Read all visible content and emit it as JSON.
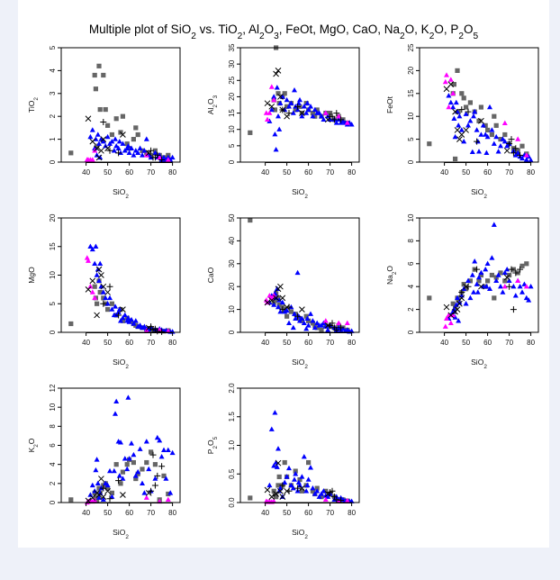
{
  "chart_data": {
    "type": "scatter",
    "title": "Multiple plot of SiO2 vs. TiO2, Al2O3, FeOt, MgO, CaO, Na2O, K2O, P2O5",
    "xlabel": "SiO2",
    "xlim": [
      28.5,
      83.5
    ],
    "xticks": [
      40,
      50,
      60,
      70,
      80
    ],
    "grid": false,
    "legend": "none",
    "variables": [
      "SiO2",
      "TiO2",
      "Al2O3",
      "FeOt",
      "MgO",
      "CaO",
      "Na2O",
      "K2O",
      "P2O5"
    ],
    "panels": [
      {
        "ylabel": "TiO2",
        "ylim": [
          0,
          5
        ],
        "yticks": [
          "0",
          "1",
          "2",
          "3",
          "4",
          "5"
        ]
      },
      {
        "ylabel": "Al2O3",
        "ylim": [
          0,
          35
        ],
        "yticks": [
          "0",
          "5",
          "10",
          "15",
          "20",
          "25",
          "30",
          "35"
        ]
      },
      {
        "ylabel": "FeOt",
        "ylim": [
          0,
          25
        ],
        "yticks": [
          "0",
          "5",
          "10",
          "15",
          "20",
          "25"
        ]
      },
      {
        "ylabel": "MgO",
        "ylim": [
          0,
          20
        ],
        "yticks": [
          "0",
          "5",
          "10",
          "15",
          "20"
        ]
      },
      {
        "ylabel": "CaO",
        "ylim": [
          0,
          50
        ],
        "yticks": [
          "0",
          "10",
          "20",
          "30",
          "40",
          "50"
        ]
      },
      {
        "ylabel": "Na2O",
        "ylim": [
          0,
          10
        ],
        "yticks": [
          "0",
          "2",
          "4",
          "6",
          "8",
          "10"
        ]
      },
      {
        "ylabel": "K2O",
        "ylim": [
          0,
          12
        ],
        "yticks": [
          "0",
          "2",
          "4",
          "6",
          "8",
          "10",
          "12"
        ]
      },
      {
        "ylabel": "P2O5",
        "ylim": [
          0,
          2
        ],
        "yticks": [
          "0.0",
          "0.5",
          "1.0",
          "1.5",
          "2.0"
        ]
      }
    ],
    "series": [
      {
        "marker": "square",
        "color": "#666666",
        "samples": [
          [
            33,
            0.4,
            9,
            4,
            1.5,
            49,
            3,
            0.3,
            0.08
          ],
          [
            44,
            3.8,
            19,
            15,
            8,
            13,
            2.5,
            1.0,
            0.2
          ],
          [
            44.5,
            3.2,
            16,
            17,
            6,
            14,
            1.8,
            0.5,
            0.15
          ],
          [
            45,
            0.7,
            35,
            0.7,
            5,
            17,
            2.2,
            0.2,
            0.1
          ],
          [
            46,
            4.2,
            21,
            20,
            9,
            15,
            3,
            1.5,
            0.3
          ],
          [
            46.5,
            2.3,
            18,
            11,
            7,
            12,
            2.8,
            1.0,
            0.45
          ],
          [
            48,
            3.8,
            20,
            15,
            6,
            11,
            3.5,
            1.8,
            0.3
          ],
          [
            49,
            2.3,
            21,
            14,
            5,
            10,
            4.2,
            2.0,
            0.7
          ],
          [
            50,
            1.6,
            17,
            12,
            4,
            7,
            3.8,
            1.5,
            0.45
          ],
          [
            52,
            1.2,
            18,
            13,
            5,
            9,
            4.5,
            1.0,
            0.3
          ],
          [
            54,
            1.9,
            16,
            11,
            3,
            8,
            5.5,
            4,
            0.55
          ],
          [
            56,
            1.3,
            17,
            9,
            4,
            6,
            4.5,
            2.0,
            0.4
          ],
          [
            57,
            2.0,
            15,
            12,
            2,
            5,
            5,
            3.2,
            0.2
          ],
          [
            59,
            0.8,
            18,
            8,
            2.5,
            7,
            4,
            4.0,
            0.3
          ],
          [
            60,
            0.6,
            16,
            7,
            2,
            5,
            4.5,
            4.5,
            0.7
          ],
          [
            62,
            1.0,
            15,
            6,
            1.5,
            4,
            5,
            4.2,
            0.2
          ],
          [
            63,
            1.5,
            14,
            10,
            1.2,
            3,
            3,
            2.5,
            0.15
          ],
          [
            64,
            1.2,
            16,
            8,
            1,
            2,
            4.8,
            3.0,
            0.25
          ],
          [
            66,
            0.5,
            14,
            5,
            0.8,
            1,
            5.2,
            3.5,
            0.1
          ],
          [
            68,
            0.4,
            15,
            6,
            0.6,
            3,
            4.5,
            4.2,
            0.2
          ],
          [
            70,
            0.3,
            15,
            4,
            0.5,
            2.5,
            5,
            5.3,
            0.15
          ],
          [
            72,
            0.5,
            13,
            3,
            0.4,
            2,
            5.5,
            4.0,
            0.1
          ],
          [
            74,
            0.3,
            14,
            2.5,
            0.3,
            3,
            5.2,
            0.3,
            0.05
          ],
          [
            76,
            0.2,
            13,
            3.5,
            0.2,
            2,
            5.8,
            2.8,
            0.05
          ],
          [
            78,
            0.3,
            12,
            1.8,
            0.3,
            1,
            6,
            0.9,
            0.03
          ]
        ]
      },
      {
        "marker": "triangle",
        "color": "#0000ff",
        "samples": [
          [
            42,
            1.1,
            12.5,
            14.5,
            15,
            13,
            1.2,
            0.8,
            0.3
          ],
          [
            43,
            1.4,
            16,
            13,
            14.5,
            16,
            1.5,
            1.8,
            1.28
          ],
          [
            44,
            0.6,
            20,
            12,
            12,
            12,
            1.8,
            1.2,
            0.64
          ],
          [
            44.5,
            1.0,
            8.5,
            9.5,
            15,
            17,
            2.0,
            3.4,
            1.57
          ],
          [
            45,
            0.3,
            3.8,
            5.5,
            10,
            15,
            1.3,
            4.5,
            0.7
          ],
          [
            45.5,
            1.2,
            22.8,
            13,
            11,
            19,
            2.4,
            2.0,
            0.62
          ],
          [
            46,
            0.8,
            14,
            11,
            9,
            11,
            3.0,
            0.5,
            0.94
          ],
          [
            46.5,
            0.2,
            10,
            8,
            12,
            14,
            1.0,
            1.0,
            0.2
          ],
          [
            47,
            1.0,
            18,
            10,
            8,
            9,
            2.6,
            1.5,
            0.25
          ],
          [
            48,
            0.9,
            20,
            7,
            7,
            13,
            3.2,
            0.3,
            0.1
          ],
          [
            49,
            0.7,
            16,
            4.5,
            6,
            9,
            3.8,
            2.0,
            0.35
          ],
          [
            50,
            1.1,
            19,
            10.5,
            5,
            9.5,
            2.5,
            1.8,
            0.45
          ],
          [
            51,
            0.8,
            17,
            8,
            6,
            4,
            4.5,
            3.3,
            0.6
          ],
          [
            52,
            0.9,
            18,
            9,
            4,
            11,
            3.0,
            0.6,
            0.3
          ],
          [
            53,
            0.5,
            15,
            2.2,
            3,
            2,
            5,
            3.3,
            0.25
          ],
          [
            53.5,
            1.0,
            22,
            10,
            4.5,
            8,
            3.5,
            9.3,
            0.4
          ],
          [
            54,
            0.7,
            17,
            11,
            3,
            6,
            6.2,
            10.6,
            0.5
          ],
          [
            55,
            0.6,
            16,
            7,
            3.5,
            26,
            4.2,
            6.4,
            0.2
          ],
          [
            55.5,
            0.9,
            18,
            4.5,
            4,
            7,
            3.5,
            2.8,
            0.35
          ],
          [
            56,
            0.4,
            19,
            2.3,
            2,
            5,
            4.8,
            6.3,
            0.3
          ],
          [
            57,
            0.8,
            14,
            6,
            2.5,
            6,
            5.2,
            2.5,
            0.45
          ],
          [
            58,
            0.5,
            17,
            8,
            3,
            4,
            4.0,
            4.6,
            0.8
          ],
          [
            59,
            0.6,
            15,
            6,
            2,
            1.5,
            5.5,
            3.5,
            0.2
          ],
          [
            59.5,
            0.7,
            18,
            2,
            2.5,
            6,
            4,
            11,
            0.3
          ],
          [
            60,
            0.4,
            16,
            5.5,
            1.8,
            3,
            6,
            4.6,
            0.4
          ],
          [
            61,
            0.6,
            17,
            12,
            2.2,
            8,
            3.8,
            6.2,
            0.61
          ],
          [
            62,
            0.3,
            14,
            7,
            1.5,
            5,
            6.5,
            5.0,
            0.25
          ],
          [
            63,
            0.5,
            16,
            4,
            2,
            2,
            9.4,
            2.8,
            0.15
          ],
          [
            64,
            0.4,
            15,
            5.5,
            1,
            4,
            4.5,
            3.2,
            0.2
          ],
          [
            65,
            0.6,
            15,
            2.3,
            1.2,
            3,
            5,
            5.6,
            0.1
          ],
          [
            66,
            0.3,
            14,
            3.5,
            0.8,
            3,
            4,
            2.0,
            0.15
          ],
          [
            67,
            0.5,
            13,
            5,
            1,
            4,
            3.5,
            1.0,
            0.2
          ],
          [
            68,
            1.0,
            15,
            4.5,
            0.6,
            2.5,
            5.2,
            6.4,
            0.12
          ],
          [
            69,
            0.3,
            14,
            3.5,
            0.5,
            1,
            5.5,
            3.5,
            0.1
          ],
          [
            70,
            0.2,
            13,
            4,
            0.8,
            3,
            4.5,
            1.2,
            0.15
          ],
          [
            72,
            0.4,
            13,
            2.5,
            0.5,
            2,
            4,
            2.5,
            0.05
          ],
          [
            73,
            0.2,
            12,
            1.5,
            0.3,
            1,
            3.2,
            6.8,
            0.1
          ],
          [
            74,
            0.3,
            13,
            2,
            0.6,
            2,
            4.5,
            6.5,
            0.05
          ],
          [
            75,
            0.1,
            12,
            1.2,
            0.4,
            0.8,
            4,
            4.8,
            0.08
          ],
          [
            76,
            0.2,
            12.5,
            0.8,
            0.2,
            1.5,
            3.5,
            5.5,
            0.05
          ],
          [
            77,
            0.1,
            12,
            1.5,
            0.3,
            0.5,
            4.2,
            2.5,
            0.03
          ],
          [
            78,
            0.2,
            11.5,
            0.5,
            0.2,
            1,
            3,
            5.5,
            0.02
          ],
          [
            79,
            0.1,
            12,
            1.2,
            0.1,
            0.3,
            2.8,
            1.0,
            0.02
          ],
          [
            80,
            0.2,
            11.5,
            0.4,
            0.1,
            0.5,
            4,
            5.2,
            0.02
          ]
        ]
      },
      {
        "marker": "triangle",
        "color": "#ff00ff",
        "samples": [
          [
            40.5,
            0.1,
            15,
            17.5,
            13,
            14,
            0.5,
            0,
            0.02
          ],
          [
            41,
            0.1,
            13,
            19,
            12.5,
            13,
            1.2,
            0.1,
            0.01
          ],
          [
            42,
            0.1,
            15,
            12,
            8,
            16,
            1.5,
            0.2,
            0.02
          ],
          [
            43,
            0.1,
            23,
            18,
            7,
            15,
            0.8,
            0.1,
            0.01
          ],
          [
            44,
            0.5,
            19,
            15,
            6,
            16,
            1.5,
            0.2,
            0.02
          ],
          [
            68,
            0.3,
            15,
            8.5,
            0.3,
            5,
            4,
            0.5,
            0.05
          ],
          [
            74,
            0.2,
            14,
            5,
            0.4,
            4,
            4.5,
            0.1,
            0.02
          ],
          [
            78,
            0.1,
            12,
            1.5,
            0.2,
            4,
            4,
            0.3,
            0.03
          ]
        ]
      },
      {
        "marker": "cross",
        "color": "#000000",
        "samples": [
          [
            41,
            1.9,
            18,
            16,
            7.5,
            13,
            2.2,
            0.2,
            0.22
          ],
          [
            43,
            0.9,
            17,
            17,
            9,
            14,
            1.5,
            0.5,
            0.1
          ],
          [
            45,
            0.6,
            27,
            11,
            3,
            15,
            1.8,
            1.0,
            0.15
          ],
          [
            46,
            0.2,
            28,
            7,
            11,
            19,
            2,
            0.8,
            0.69
          ],
          [
            47,
            0.5,
            20,
            5,
            10,
            20,
            2.5,
            2.5,
            0.2
          ],
          [
            48,
            1.0,
            16,
            6,
            8,
            15,
            3,
            0.6,
            0.1
          ],
          [
            50,
            0.6,
            14,
            7,
            7,
            11,
            4,
            1.2,
            0.2
          ],
          [
            57,
            1.2,
            15,
            9,
            4,
            10,
            4,
            0.8,
            0.25
          ],
          [
            69,
            0.4,
            13,
            2.5,
            0.8,
            3,
            4.8,
            1.0,
            0.15
          ]
        ]
      },
      {
        "marker": "plus",
        "color": "#000000",
        "samples": [
          [
            48,
            1.75,
            16,
            11.5,
            5,
            10,
            3.5,
            1.5,
            0.3
          ],
          [
            51,
            0.5,
            15,
            11,
            8,
            11,
            4,
            0.4,
            0.2
          ],
          [
            55,
            0.4,
            17,
            4.5,
            3,
            7,
            5.5,
            2.3,
            0.25
          ],
          [
            71,
            0.2,
            14,
            5,
            0.5,
            4,
            5.5,
            5,
            0.2
          ],
          [
            72,
            0.2,
            13,
            2,
            0.6,
            2,
            2,
            1.8,
            0.1
          ],
          [
            73,
            0.3,
            15,
            3,
            0.2,
            1,
            5.2,
            2.8,
            0.05
          ],
          [
            75,
            0.1,
            13,
            1.5,
            0.1,
            2,
            5.5,
            3.8,
            0.04
          ],
          [
            70,
            0.5,
            14,
            4,
            1,
            3,
            4,
            1.2,
            0.18
          ]
        ]
      }
    ]
  }
}
